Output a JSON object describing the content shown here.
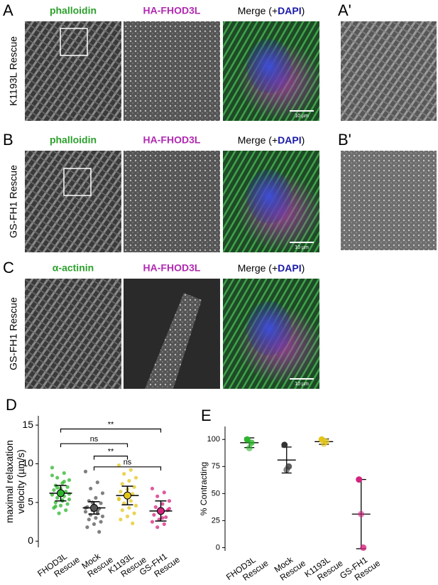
{
  "panels": [
    {
      "letter": "A",
      "row_label": "K1193L Rescue",
      "channels": [
        "phalloidin",
        "HA-FHOD3L"
      ],
      "merge": [
        "Merge (+",
        "DAPI",
        ")"
      ],
      "scale_bar": "10 µm",
      "inset_letter": "A'"
    },
    {
      "letter": "B",
      "row_label": "GS-FH1 Rescue",
      "channels": [
        "phalloidin",
        "HA-FHOD3L"
      ],
      "merge": [
        "Merge (+",
        "DAPI",
        ")"
      ],
      "scale_bar": "10 µm",
      "inset_letter": "B'"
    },
    {
      "letter": "C",
      "row_label": "GS-FH1 Rescue",
      "channels": [
        "α-actinin",
        "HA-FHOD3L"
      ],
      "merge": [
        "Merge (+",
        "DAPI",
        ")"
      ],
      "scale_bar": "10 µm"
    }
  ],
  "chart_data": [
    {
      "type": "strip",
      "panel_letter": "D",
      "ylabel": "maximal relaxation velocity (µm/s)",
      "categories": [
        "FHOD3L Rescue",
        "Mock Rescue",
        "K1193L Rescue",
        "GS-FH1 Rescue"
      ],
      "colors": [
        "#2bb52b",
        "#555555",
        "#e3c51a",
        "#d4237e"
      ],
      "points": [
        [
          9.5,
          8.8,
          8.2,
          7.9,
          7.5,
          7.2,
          7.0,
          6.8,
          6.6,
          6.4,
          6.2,
          6.0,
          5.8,
          5.6,
          5.4,
          5.2,
          5.0,
          4.8,
          4.6,
          4.3,
          4.0,
          3.6,
          8.5,
          7.7,
          6.9,
          6.1,
          5.3,
          4.5
        ],
        [
          9.0,
          7.6,
          6.8,
          6.2,
          5.6,
          5.2,
          4.9,
          4.6,
          4.4,
          4.2,
          4.0,
          3.8,
          3.6,
          3.4,
          3.2,
          3.0,
          2.8,
          2.5,
          2.2,
          1.8,
          1.2,
          5.0,
          4.3,
          3.9
        ],
        [
          9.8,
          9.2,
          8.7,
          8.2,
          7.8,
          7.4,
          7.0,
          6.7,
          6.4,
          6.1,
          5.8,
          5.5,
          5.2,
          4.9,
          4.6,
          4.3,
          4.0,
          3.6,
          3.2,
          2.8,
          2.3,
          6.0,
          5.4
        ],
        [
          6.8,
          6.3,
          5.8,
          5.2,
          4.8,
          4.4,
          4.0,
          3.7,
          3.4,
          3.1,
          2.8,
          2.5,
          2.2,
          1.8,
          4.2,
          3.0
        ]
      ],
      "means": [
        6.2,
        4.3,
        5.9,
        3.9
      ],
      "errors": [
        1.0,
        0.8,
        1.2,
        1.3
      ],
      "ylim": [
        -0.8,
        16.2
      ],
      "yticks": [
        0,
        5,
        10,
        15
      ],
      "annotations": [
        {
          "text": "**",
          "from": 0,
          "to": 3,
          "y": 14.5
        },
        {
          "text": "ns",
          "from": 0,
          "to": 2,
          "y": 12.6
        },
        {
          "text": "**",
          "from": 1,
          "to": 2,
          "y": 11.0
        },
        {
          "text": "ns",
          "from": 1,
          "to": 3,
          "y": 9.6
        }
      ]
    },
    {
      "type": "dot-range",
      "panel_letter": "E",
      "ylabel": "% Contracting",
      "categories": [
        "FHOD3L Rescue",
        "Mock Rescue",
        "K1193L Rescue",
        "GS-FH1 Rescue"
      ],
      "colors": [
        "#2bb52b",
        "#333333",
        "#e3c51a",
        "#d4237e"
      ],
      "points": [
        [
          100,
          92,
          97
        ],
        [
          95,
          72,
          75
        ],
        [
          100,
          96,
          98
        ],
        [
          63,
          31,
          0
        ]
      ],
      "means": [
        97,
        81,
        98,
        31
      ],
      "errors": [
        4.5,
        12,
        2.5,
        32
      ],
      "ylim": [
        -3,
        112
      ],
      "yticks": [
        0,
        25,
        50,
        75,
        100
      ]
    }
  ]
}
